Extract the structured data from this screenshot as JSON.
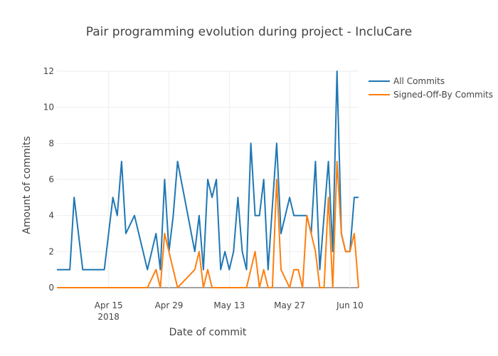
{
  "chart_data": {
    "type": "line",
    "title": "Pair programming evolution during project - IncluCare",
    "xlabel": "Date of commit",
    "ylabel": "Amount of commits",
    "x_range": [
      "2018-04-03",
      "2018-06-12"
    ],
    "ylim": [
      0,
      12
    ],
    "y_ticks": [
      0,
      2,
      4,
      6,
      8,
      10,
      12
    ],
    "x_ticks": [
      {
        "date": "2018-04-15",
        "label": "Apr 15",
        "sublabel": "2018"
      },
      {
        "date": "2018-04-29",
        "label": "Apr 29",
        "sublabel": ""
      },
      {
        "date": "2018-05-13",
        "label": "May 13",
        "sublabel": ""
      },
      {
        "date": "2018-05-27",
        "label": "May 27",
        "sublabel": ""
      },
      {
        "date": "2018-06-10",
        "label": "Jun 10",
        "sublabel": ""
      }
    ],
    "grid": true,
    "legend_position": "top-right",
    "series": [
      {
        "name": "All Commits",
        "color": "#1f77b4",
        "points": [
          [
            "2018-04-03",
            1
          ],
          [
            "2018-04-06",
            1
          ],
          [
            "2018-04-07",
            5
          ],
          [
            "2018-04-09",
            1
          ],
          [
            "2018-04-14",
            1
          ],
          [
            "2018-04-16",
            5
          ],
          [
            "2018-04-17",
            4
          ],
          [
            "2018-04-18",
            7
          ],
          [
            "2018-04-19",
            3
          ],
          [
            "2018-04-21",
            4
          ],
          [
            "2018-04-24",
            1
          ],
          [
            "2018-04-26",
            3
          ],
          [
            "2018-04-27",
            1
          ],
          [
            "2018-04-28",
            6
          ],
          [
            "2018-04-29",
            2
          ],
          [
            "2018-04-30",
            4
          ],
          [
            "2018-05-01",
            7
          ],
          [
            "2018-05-05",
            2
          ],
          [
            "2018-05-06",
            4
          ],
          [
            "2018-05-07",
            1
          ],
          [
            "2018-05-08",
            6
          ],
          [
            "2018-05-09",
            5
          ],
          [
            "2018-05-10",
            6
          ],
          [
            "2018-05-11",
            1
          ],
          [
            "2018-05-12",
            2
          ],
          [
            "2018-05-13",
            1
          ],
          [
            "2018-05-14",
            2
          ],
          [
            "2018-05-15",
            5
          ],
          [
            "2018-05-16",
            2
          ],
          [
            "2018-05-17",
            1
          ],
          [
            "2018-05-18",
            8
          ],
          [
            "2018-05-19",
            4
          ],
          [
            "2018-05-20",
            4
          ],
          [
            "2018-05-21",
            6
          ],
          [
            "2018-05-22",
            1
          ],
          [
            "2018-05-24",
            8
          ],
          [
            "2018-05-25",
            3
          ],
          [
            "2018-05-27",
            5
          ],
          [
            "2018-05-28",
            4
          ],
          [
            "2018-05-31",
            4
          ],
          [
            "2018-06-01",
            3
          ],
          [
            "2018-06-02",
            7
          ],
          [
            "2018-06-03",
            1
          ],
          [
            "2018-06-05",
            7
          ],
          [
            "2018-06-06",
            2
          ],
          [
            "2018-06-07",
            12
          ],
          [
            "2018-06-08",
            3
          ],
          [
            "2018-06-09",
            2
          ],
          [
            "2018-06-10",
            2
          ],
          [
            "2018-06-11",
            5
          ],
          [
            "2018-06-12",
            5
          ]
        ]
      },
      {
        "name": "Signed-Off-By Commits",
        "color": "#ff7f0e",
        "points": [
          [
            "2018-04-03",
            0
          ],
          [
            "2018-04-24",
            0
          ],
          [
            "2018-04-26",
            1
          ],
          [
            "2018-04-27",
            0
          ],
          [
            "2018-04-28",
            3
          ],
          [
            "2018-04-30",
            1
          ],
          [
            "2018-05-01",
            0
          ],
          [
            "2018-05-05",
            1
          ],
          [
            "2018-05-06",
            2
          ],
          [
            "2018-05-07",
            0
          ],
          [
            "2018-05-08",
            1
          ],
          [
            "2018-05-09",
            0
          ],
          [
            "2018-05-17",
            0
          ],
          [
            "2018-05-19",
            2
          ],
          [
            "2018-05-20",
            0
          ],
          [
            "2018-05-21",
            1
          ],
          [
            "2018-05-22",
            0
          ],
          [
            "2018-05-23",
            0
          ],
          [
            "2018-05-24",
            6
          ],
          [
            "2018-05-25",
            1
          ],
          [
            "2018-05-27",
            0
          ],
          [
            "2018-05-28",
            1
          ],
          [
            "2018-05-29",
            1
          ],
          [
            "2018-05-30",
            0
          ],
          [
            "2018-05-31",
            4
          ],
          [
            "2018-06-01",
            3
          ],
          [
            "2018-06-02",
            2
          ],
          [
            "2018-06-03",
            0
          ],
          [
            "2018-06-04",
            0
          ],
          [
            "2018-06-05",
            5
          ],
          [
            "2018-06-06",
            0
          ],
          [
            "2018-06-07",
            7
          ],
          [
            "2018-06-08",
            3
          ],
          [
            "2018-06-09",
            2
          ],
          [
            "2018-06-10",
            2
          ],
          [
            "2018-06-11",
            3
          ],
          [
            "2018-06-12",
            0
          ]
        ]
      }
    ]
  }
}
